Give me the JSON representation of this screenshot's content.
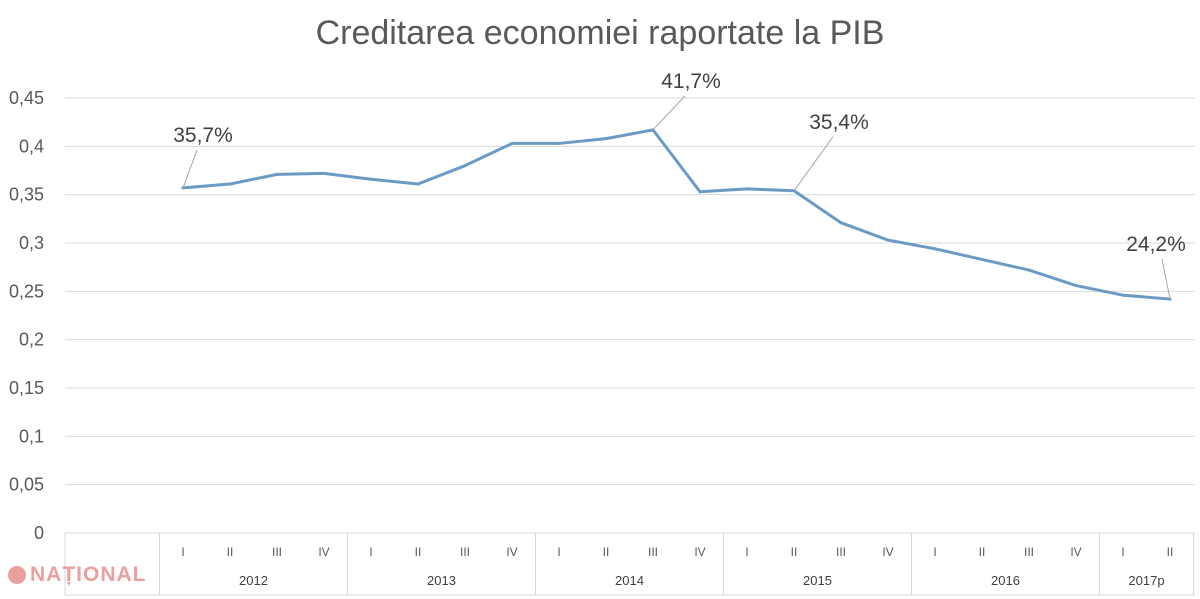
{
  "chart_data": {
    "type": "line",
    "title": "Creditarea economiei raportate la PIB",
    "ylim": [
      0,
      0.45
    ],
    "yticks": [
      "0",
      "0,05",
      "0,1",
      "0,15",
      "0,2",
      "0,25",
      "0,3",
      "0,35",
      "0,4",
      "0,45"
    ],
    "grid": true,
    "quarters": [
      "I",
      "II",
      "III",
      "IV",
      "I",
      "II",
      "III",
      "IV",
      "I",
      "II",
      "III",
      "IV",
      "I",
      "II",
      "III",
      "IV",
      "I",
      "II",
      "III",
      "IV",
      "I",
      "II"
    ],
    "years": [
      {
        "label": "2012",
        "quarters": 4
      },
      {
        "label": "2013",
        "quarters": 4
      },
      {
        "label": "2014",
        "quarters": 4
      },
      {
        "label": "2015",
        "quarters": 4
      },
      {
        "label": "2016",
        "quarters": 4
      },
      {
        "label": "2017p",
        "quarters": 2
      }
    ],
    "series": [
      {
        "values": [
          0.357,
          0.361,
          0.371,
          0.372,
          0.366,
          0.361,
          0.38,
          0.403,
          0.403,
          0.408,
          0.417,
          0.353,
          0.356,
          0.354,
          0.321,
          0.303,
          0.294,
          0.283,
          0.272,
          0.256,
          0.246,
          0.242
        ]
      }
    ],
    "annotations": [
      {
        "index": 0,
        "text": "35,7%"
      },
      {
        "index": 10,
        "text": "41,7%"
      },
      {
        "index": 13,
        "text": "35,4%"
      },
      {
        "index": 21,
        "text": "24,2%"
      }
    ],
    "line_color": "#6b9ac4"
  },
  "brand": {
    "text": "NAȚIONAL",
    "color": "#d9534f"
  }
}
